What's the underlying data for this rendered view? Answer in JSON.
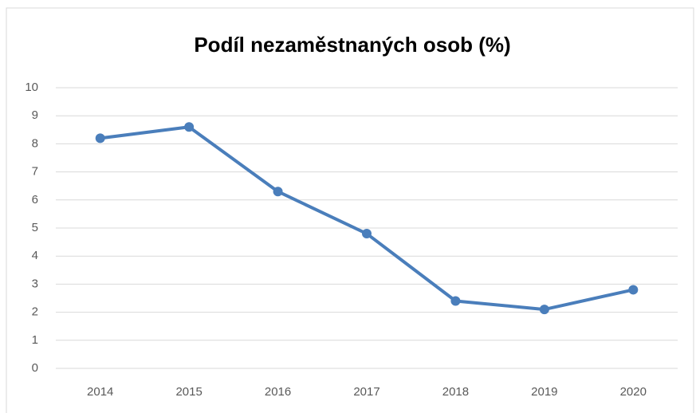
{
  "chart_data": {
    "type": "line",
    "title": "Podíl nezaměstnaných osob (%)",
    "categories": [
      "2014",
      "2015",
      "2016",
      "2017",
      "2018",
      "2019",
      "2020"
    ],
    "series": [
      {
        "name": "Podíl nezaměstnaných osob",
        "color": "#4a7ebb",
        "values": [
          8.2,
          8.6,
          6.3,
          4.8,
          2.4,
          2.1,
          2.8
        ]
      }
    ],
    "ylim": [
      0,
      10
    ],
    "yticks": [
      0,
      1,
      2,
      3,
      4,
      5,
      6,
      7,
      8,
      9,
      10
    ],
    "grid": true
  }
}
